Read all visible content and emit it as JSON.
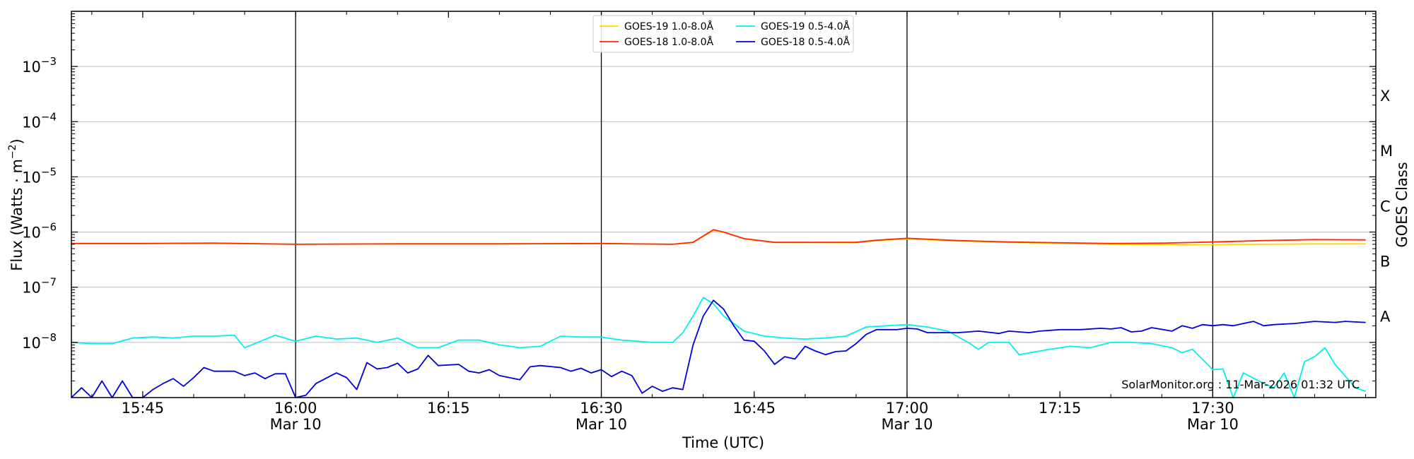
{
  "chart_data": {
    "type": "line",
    "xlabel": "Time (UTC)",
    "ylabel": "Flux (Watts · m",
    "ylabel_sup": "−2",
    "y2label": "GOES Class",
    "yscale": "log",
    "xlim": [
      "15:38",
      "17:46"
    ],
    "ylim": [
      1e-09,
      0.01
    ],
    "x_ticks": [
      {
        "time": "15:45",
        "label": "15:45",
        "sublabel": ""
      },
      {
        "time": "16:00",
        "label": "16:00",
        "sublabel": "Mar 10"
      },
      {
        "time": "16:15",
        "label": "16:15",
        "sublabel": ""
      },
      {
        "time": "16:30",
        "label": "16:30",
        "sublabel": "Mar 10"
      },
      {
        "time": "16:45",
        "label": "16:45",
        "sublabel": ""
      },
      {
        "time": "17:00",
        "label": "17:00",
        "sublabel": "Mar 10"
      },
      {
        "time": "17:15",
        "label": "17:15",
        "sublabel": ""
      },
      {
        "time": "17:30",
        "label": "17:30",
        "sublabel": "Mar 10"
      }
    ],
    "y_ticks": [
      {
        "value": 1e-08,
        "base": "10",
        "exp": "−8"
      },
      {
        "value": 1e-07,
        "base": "10",
        "exp": "−7"
      },
      {
        "value": 1e-06,
        "base": "10",
        "exp": "−6"
      },
      {
        "value": 1e-05,
        "base": "10",
        "exp": "−5"
      },
      {
        "value": 0.0001,
        "base": "10",
        "exp": "−4"
      },
      {
        "value": 0.001,
        "base": "10",
        "exp": "−3"
      }
    ],
    "class_labels": [
      {
        "label": "A",
        "value": 3e-08
      },
      {
        "label": "B",
        "value": 3e-07
      },
      {
        "label": "C",
        "value": 3e-06
      },
      {
        "label": "M",
        "value": 3e-05
      },
      {
        "label": "X",
        "value": 0.0003
      }
    ],
    "vertical_lines": [
      "16:00",
      "16:30",
      "17:00",
      "17:30"
    ],
    "grid": "horizontal",
    "legend_position": "top-center",
    "annotation": "SolarMonitor.org : 11-Mar-2026 01:32 UTC",
    "series": [
      {
        "name": "GOES-19 1.0-8.0Å",
        "color": "#ffd700",
        "points": [
          [
            "15:38",
            6.2e-07
          ],
          [
            "15:45",
            6.2e-07
          ],
          [
            "15:52",
            6.3e-07
          ],
          [
            "16:00",
            6e-07
          ],
          [
            "16:10",
            6.1e-07
          ],
          [
            "16:20",
            6.1e-07
          ],
          [
            "16:30",
            6.2e-07
          ],
          [
            "16:37",
            6e-07
          ],
          [
            "16:39",
            6.5e-07
          ],
          [
            "16:41",
            1.08e-06
          ],
          [
            "16:42",
            1e-06
          ],
          [
            "16:44",
            7.5e-07
          ],
          [
            "16:47",
            6.5e-07
          ],
          [
            "16:55",
            6.4e-07
          ],
          [
            "16:57",
            7e-07
          ],
          [
            "17:00",
            7.5e-07
          ],
          [
            "17:05",
            6.9e-07
          ],
          [
            "17:10",
            6.5e-07
          ],
          [
            "17:20",
            6e-07
          ],
          [
            "17:25",
            5.9e-07
          ],
          [
            "17:30",
            5.9e-07
          ],
          [
            "17:35",
            6e-07
          ],
          [
            "17:40",
            6.1e-07
          ],
          [
            "17:45",
            6.1e-07
          ]
        ]
      },
      {
        "name": "GOES-18 1.0-8.0Å",
        "color": "#ff2a00",
        "points": [
          [
            "15:38",
            6.2e-07
          ],
          [
            "15:45",
            6.2e-07
          ],
          [
            "15:52",
            6.3e-07
          ],
          [
            "16:00",
            6e-07
          ],
          [
            "16:10",
            6.1e-07
          ],
          [
            "16:20",
            6.1e-07
          ],
          [
            "16:30",
            6.2e-07
          ],
          [
            "16:37",
            6e-07
          ],
          [
            "16:39",
            6.5e-07
          ],
          [
            "16:41",
            1.1e-06
          ],
          [
            "16:42",
            1e-06
          ],
          [
            "16:44",
            7.6e-07
          ],
          [
            "16:47",
            6.5e-07
          ],
          [
            "16:55",
            6.5e-07
          ],
          [
            "16:57",
            7.1e-07
          ],
          [
            "17:00",
            7.7e-07
          ],
          [
            "17:05",
            7e-07
          ],
          [
            "17:10",
            6.6e-07
          ],
          [
            "17:20",
            6.2e-07
          ],
          [
            "17:25",
            6.3e-07
          ],
          [
            "17:30",
            6.6e-07
          ],
          [
            "17:35",
            7e-07
          ],
          [
            "17:40",
            7.3e-07
          ],
          [
            "17:45",
            7.2e-07
          ]
        ]
      },
      {
        "name": "GOES-19 0.5-4.0Å",
        "color": "#00f0f0",
        "points": [
          [
            "15:38",
            1e-08
          ],
          [
            "15:40",
            9.5e-09
          ],
          [
            "15:42",
            9.5e-09
          ],
          [
            "15:44",
            1.2e-08
          ],
          [
            "15:46",
            1.25e-08
          ],
          [
            "15:48",
            1.2e-08
          ],
          [
            "15:50",
            1.3e-08
          ],
          [
            "15:52",
            1.3e-08
          ],
          [
            "15:54",
            1.35e-08
          ],
          [
            "15:55",
            8e-09
          ],
          [
            "15:58",
            1.35e-08
          ],
          [
            "16:00",
            1.05e-08
          ],
          [
            "16:02",
            1.3e-08
          ],
          [
            "16:04",
            1.15e-08
          ],
          [
            "16:06",
            1.2e-08
          ],
          [
            "16:08",
            1e-08
          ],
          [
            "16:10",
            1.2e-08
          ],
          [
            "16:12",
            8e-09
          ],
          [
            "16:14",
            8e-09
          ],
          [
            "16:16",
            1.1e-08
          ],
          [
            "16:18",
            1.1e-08
          ],
          [
            "16:20",
            9e-09
          ],
          [
            "16:22",
            8e-09
          ],
          [
            "16:24",
            8.5e-09
          ],
          [
            "16:26",
            1.3e-08
          ],
          [
            "16:28",
            1.25e-08
          ],
          [
            "16:30",
            1.25e-08
          ],
          [
            "16:32",
            1.1e-08
          ],
          [
            "16:35",
            1e-08
          ],
          [
            "16:37",
            1e-08
          ],
          [
            "16:38",
            1.5e-08
          ],
          [
            "16:39",
            3e-08
          ],
          [
            "16:40",
            6.5e-08
          ],
          [
            "16:41",
            5e-08
          ],
          [
            "16:42",
            3e-08
          ],
          [
            "16:44",
            1.6e-08
          ],
          [
            "16:46",
            1.3e-08
          ],
          [
            "16:48",
            1.2e-08
          ],
          [
            "16:50",
            1.15e-08
          ],
          [
            "16:52",
            1.2e-08
          ],
          [
            "16:54",
            1.3e-08
          ],
          [
            "16:56",
            1.9e-08
          ],
          [
            "16:58",
            2e-08
          ],
          [
            "17:00",
            2.1e-08
          ],
          [
            "17:02",
            1.9e-08
          ],
          [
            "17:04",
            1.6e-08
          ],
          [
            "17:06",
            1e-08
          ],
          [
            "17:07",
            7.5e-09
          ],
          [
            "17:08",
            1e-08
          ],
          [
            "17:10",
            1e-08
          ],
          [
            "17:11",
            6e-09
          ],
          [
            "17:14",
            7.5e-09
          ],
          [
            "17:16",
            8.5e-09
          ],
          [
            "17:18",
            8e-09
          ],
          [
            "17:20",
            1e-08
          ],
          [
            "17:22",
            1e-08
          ],
          [
            "17:24",
            9.5e-09
          ],
          [
            "17:26",
            8e-09
          ],
          [
            "17:27",
            6.5e-09
          ],
          [
            "17:28",
            7.5e-09
          ],
          [
            "17:30",
            3.2e-09
          ],
          [
            "17:31",
            3.3e-09
          ],
          [
            "17:32",
            1e-09
          ],
          [
            "17:33",
            2.8e-09
          ],
          [
            "17:35",
            1.8e-09
          ],
          [
            "17:36",
            1.5e-09
          ],
          [
            "17:37",
            2.8e-09
          ],
          [
            "17:38",
            1e-09
          ],
          [
            "17:39",
            4.5e-09
          ],
          [
            "17:40",
            5.5e-09
          ],
          [
            "17:41",
            8e-09
          ],
          [
            "17:42",
            4e-09
          ],
          [
            "17:44",
            1.5e-09
          ],
          [
            "17:45",
            1.3e-09
          ]
        ]
      },
      {
        "name": "GOES-18 0.5-4.0Å",
        "color": "#0000e0",
        "points": [
          [
            "15:38",
            1e-09
          ],
          [
            "15:39",
            1.5e-09
          ],
          [
            "15:40",
            1e-09
          ],
          [
            "15:41",
            2e-09
          ],
          [
            "15:42",
            1e-09
          ],
          [
            "15:43",
            2e-09
          ],
          [
            "15:44",
            1e-09
          ],
          [
            "15:45",
            1e-09
          ],
          [
            "15:46",
            1.4e-09
          ],
          [
            "15:47",
            1.8e-09
          ],
          [
            "15:48",
            2.2e-09
          ],
          [
            "15:49",
            1.6e-09
          ],
          [
            "15:50",
            2.3e-09
          ],
          [
            "15:51",
            3.5e-09
          ],
          [
            "15:52",
            3e-09
          ],
          [
            "15:54",
            3e-09
          ],
          [
            "15:55",
            2.5e-09
          ],
          [
            "15:56",
            2.8e-09
          ],
          [
            "15:57",
            2.2e-09
          ],
          [
            "15:58",
            2.7e-09
          ],
          [
            "15:59",
            2.7e-09
          ],
          [
            "16:00",
            1e-09
          ],
          [
            "16:01",
            1.1e-09
          ],
          [
            "16:02",
            1.8e-09
          ],
          [
            "16:04",
            2.8e-09
          ],
          [
            "16:05",
            2.3e-09
          ],
          [
            "16:06",
            1.4e-09
          ],
          [
            "16:07",
            4.3e-09
          ],
          [
            "16:08",
            3.3e-09
          ],
          [
            "16:09",
            3.5e-09
          ],
          [
            "16:10",
            4.2e-09
          ],
          [
            "16:11",
            2.8e-09
          ],
          [
            "16:12",
            3.3e-09
          ],
          [
            "16:13",
            5.8e-09
          ],
          [
            "16:14",
            3.8e-09
          ],
          [
            "16:16",
            4e-09
          ],
          [
            "16:17",
            3e-09
          ],
          [
            "16:18",
            2.8e-09
          ],
          [
            "16:19",
            3.2e-09
          ],
          [
            "16:20",
            2.5e-09
          ],
          [
            "16:22",
            2.1e-09
          ],
          [
            "16:23",
            3.6e-09
          ],
          [
            "16:24",
            3.8e-09
          ],
          [
            "16:26",
            3.5e-09
          ],
          [
            "16:27",
            3e-09
          ],
          [
            "16:28",
            3.4e-09
          ],
          [
            "16:29",
            2.8e-09
          ],
          [
            "16:30",
            3.2e-09
          ],
          [
            "16:31",
            2.4e-09
          ],
          [
            "16:32",
            3e-09
          ],
          [
            "16:33",
            2.5e-09
          ],
          [
            "16:34",
            1.2e-09
          ],
          [
            "16:35",
            1.6e-09
          ],
          [
            "16:36",
            1.3e-09
          ],
          [
            "16:37",
            1.5e-09
          ],
          [
            "16:38",
            1.4e-09
          ],
          [
            "16:39",
            9e-09
          ],
          [
            "16:40",
            3e-08
          ],
          [
            "16:41",
            5.8e-08
          ],
          [
            "16:42",
            4e-08
          ],
          [
            "16:43",
            2e-08
          ],
          [
            "16:44",
            1.1e-08
          ],
          [
            "16:45",
            1.05e-08
          ],
          [
            "16:46",
            7e-09
          ],
          [
            "16:47",
            4e-09
          ],
          [
            "16:48",
            5.5e-09
          ],
          [
            "16:49",
            5e-09
          ],
          [
            "16:50",
            8.5e-09
          ],
          [
            "16:51",
            7e-09
          ],
          [
            "16:52",
            6e-09
          ],
          [
            "16:53",
            6.8e-09
          ],
          [
            "16:54",
            7e-09
          ],
          [
            "16:55",
            9.5e-09
          ],
          [
            "16:56",
            1.4e-08
          ],
          [
            "16:57",
            1.7e-08
          ],
          [
            "16:59",
            1.7e-08
          ],
          [
            "17:00",
            1.8e-08
          ],
          [
            "17:01",
            1.75e-08
          ],
          [
            "17:02",
            1.5e-08
          ],
          [
            "17:05",
            1.5e-08
          ],
          [
            "17:07",
            1.6e-08
          ],
          [
            "17:09",
            1.45e-08
          ],
          [
            "17:10",
            1.6e-08
          ],
          [
            "17:12",
            1.5e-08
          ],
          [
            "17:13",
            1.6e-08
          ],
          [
            "17:15",
            1.7e-08
          ],
          [
            "17:17",
            1.7e-08
          ],
          [
            "17:19",
            1.8e-08
          ],
          [
            "17:20",
            1.75e-08
          ],
          [
            "17:21",
            1.85e-08
          ],
          [
            "17:22",
            1.55e-08
          ],
          [
            "17:23",
            1.6e-08
          ],
          [
            "17:24",
            1.85e-08
          ],
          [
            "17:26",
            1.6e-08
          ],
          [
            "17:27",
            2e-08
          ],
          [
            "17:28",
            1.8e-08
          ],
          [
            "17:29",
            2.1e-08
          ],
          [
            "17:30",
            2e-08
          ],
          [
            "17:31",
            2.1e-08
          ],
          [
            "17:32",
            2e-08
          ],
          [
            "17:33",
            2.2e-08
          ],
          [
            "17:34",
            2.4e-08
          ],
          [
            "17:35",
            2e-08
          ],
          [
            "17:36",
            2.1e-08
          ],
          [
            "17:38",
            2.2e-08
          ],
          [
            "17:40",
            2.4e-08
          ],
          [
            "17:42",
            2.3e-08
          ],
          [
            "17:43",
            2.4e-08
          ],
          [
            "17:45",
            2.3e-08
          ]
        ]
      }
    ],
    "legend_order": [
      0,
      2,
      1,
      3
    ]
  }
}
